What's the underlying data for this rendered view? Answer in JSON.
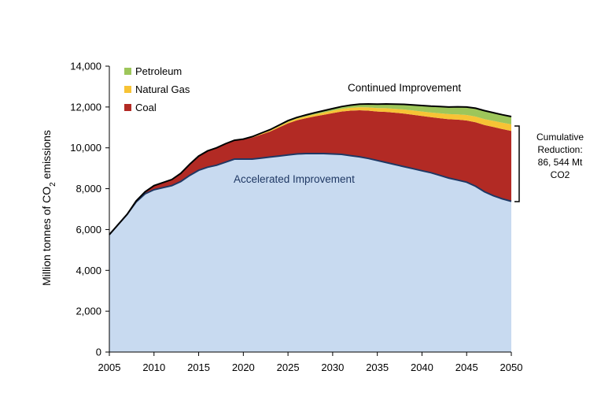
{
  "chart_data": {
    "type": "area",
    "ylabel": "Million tonnes of CO2 emissions",
    "ylim": [
      0,
      14000
    ],
    "yticks": [
      0,
      2000,
      4000,
      6000,
      8000,
      10000,
      12000,
      14000
    ],
    "ytick_labels": [
      "0",
      "2,000",
      "4,000",
      "6,000",
      "8,000",
      "10,000",
      "12,000",
      "14,000"
    ],
    "xlim": [
      2005,
      2050
    ],
    "xticks": [
      2005,
      2010,
      2015,
      2020,
      2025,
      2030,
      2035,
      2040,
      2045,
      2050
    ],
    "xtick_labels": [
      "2005",
      "2010",
      "2015",
      "2020",
      "2025",
      "2030",
      "2035",
      "2040",
      "2045",
      "2050"
    ],
    "x": [
      2005,
      2006,
      2007,
      2008,
      2009,
      2010,
      2011,
      2012,
      2013,
      2014,
      2015,
      2016,
      2017,
      2018,
      2019,
      2020,
      2021,
      2022,
      2023,
      2024,
      2025,
      2026,
      2027,
      2028,
      2029,
      2030,
      2031,
      2032,
      2033,
      2034,
      2035,
      2036,
      2037,
      2038,
      2039,
      2040,
      2041,
      2042,
      2043,
      2044,
      2045,
      2046,
      2047,
      2048,
      2049,
      2050
    ],
    "series": [
      {
        "name": "Accelerated Improvement",
        "color": "#c8daf0",
        "line_color": "#1f3864",
        "values": [
          5750,
          6250,
          6750,
          7350,
          7750,
          7950,
          8050,
          8150,
          8350,
          8650,
          8900,
          9050,
          9150,
          9300,
          9450,
          9450,
          9450,
          9500,
          9550,
          9600,
          9650,
          9700,
          9720,
          9720,
          9720,
          9700,
          9680,
          9620,
          9560,
          9480,
          9380,
          9280,
          9180,
          9080,
          8980,
          8880,
          8780,
          8650,
          8520,
          8420,
          8320,
          8120,
          7850,
          7650,
          7500,
          7380
        ]
      },
      {
        "name": "Coal",
        "color": "#b22a24",
        "values": [
          0,
          0,
          0,
          50,
          100,
          200,
          250,
          300,
          400,
          550,
          700,
          800,
          850,
          900,
          900,
          950,
          1050,
          1150,
          1250,
          1400,
          1550,
          1650,
          1730,
          1820,
          1900,
          2000,
          2100,
          2200,
          2280,
          2340,
          2400,
          2480,
          2540,
          2600,
          2640,
          2680,
          2720,
          2800,
          2880,
          2960,
          3020,
          3130,
          3270,
          3370,
          3420,
          3450
        ]
      },
      {
        "name": "Natural Gas",
        "color": "#f7c335",
        "values": [
          0,
          0,
          0,
          0,
          0,
          0,
          0,
          0,
          0,
          0,
          0,
          0,
          0,
          0,
          10,
          20,
          30,
          40,
          50,
          60,
          70,
          80,
          90,
          100,
          110,
          120,
          130,
          140,
          150,
          160,
          170,
          180,
          190,
          200,
          210,
          220,
          230,
          240,
          250,
          260,
          270,
          280,
          290,
          300,
          310,
          320
        ]
      },
      {
        "name": "Petroleum",
        "color": "#9dc65a",
        "values": [
          0,
          0,
          0,
          0,
          0,
          0,
          0,
          0,
          0,
          0,
          0,
          0,
          0,
          0,
          10,
          10,
          20,
          30,
          40,
          50,
          60,
          60,
          70,
          80,
          90,
          100,
          110,
          130,
          150,
          170,
          190,
          210,
          230,
          250,
          270,
          290,
          310,
          330,
          350,
          370,
          390,
          410,
          410,
          400,
          390,
          380
        ]
      }
    ],
    "top_line_color": "#000000",
    "legend": [
      {
        "label": "Petroleum",
        "color": "#9dc65a"
      },
      {
        "label": "Natural Gas",
        "color": "#f7c335"
      },
      {
        "label": "Coal",
        "color": "#b22a24"
      }
    ],
    "legend_position": "top-left",
    "annotations": {
      "continued": "Continued Improvement",
      "accelerated": "Accelerated Improvement",
      "reduction_lines": [
        "Cumulative",
        "Reduction:",
        "86, 544 Mt",
        "CO2"
      ]
    },
    "grid": false
  }
}
